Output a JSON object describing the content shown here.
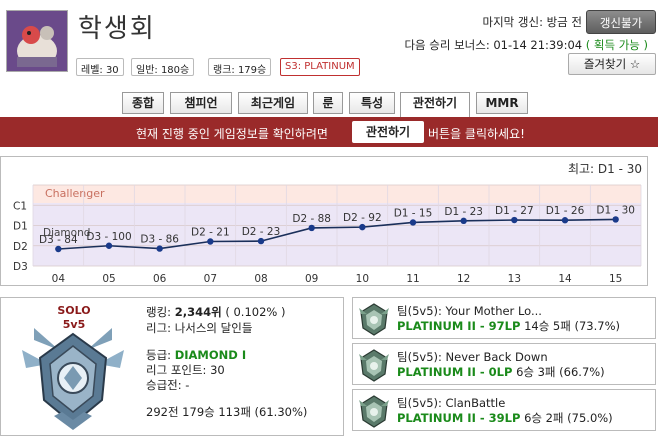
{
  "profile": {
    "name": "학생회",
    "level": "레벨: 30",
    "normal": "일반: 180승",
    "rank": "랭크: 179승",
    "tier": "S3: PLATINUM"
  },
  "update": {
    "last_update_label": "마지막 갱신: 방금 전",
    "button": "갱신불가",
    "next_bonus": "다음 승리 보너스: 01-14 21:39:04",
    "bonus_status": "( 획득 가능 )",
    "favorite": "즐겨찾기 ☆"
  },
  "tabs": [
    "종합",
    "챔피언",
    "최근게임",
    "룬",
    "특성",
    "관전하기",
    "MMR"
  ],
  "spectate_bar": {
    "text_before": "현재 진행 중인 게임정보를 확인하려면",
    "button": "관전하기",
    "text_after": "버튼을 클릭하세요!"
  },
  "chart_data": {
    "type": "line",
    "max_label": "최고: D1 - 30",
    "y_tick_labels": [
      "C1",
      "D1",
      "D2",
      "D3"
    ],
    "band_label": "Challenger",
    "diamond_label": "Diamond",
    "x": [
      "04",
      "05",
      "06",
      "07",
      "08",
      "09",
      "10",
      "11",
      "12",
      "13",
      "14",
      "15"
    ],
    "point_labels": [
      "D3 - 84",
      "D3 - 100",
      "D3 - 86",
      "D2 - 21",
      "D2 - 23",
      "D2 - 88",
      "D2 - 92",
      "D1 - 15",
      "D1 - 23",
      "D1 - 27",
      "D1 - 26",
      "D1 - 30"
    ],
    "values": [
      2.84,
      3.0,
      2.86,
      3.21,
      3.23,
      3.88,
      3.92,
      4.15,
      4.23,
      4.27,
      4.26,
      4.3
    ],
    "ylim": [
      2,
      6
    ],
    "colors": {
      "line": "#1a2f5a",
      "point": "#1a3a8a",
      "challenger_band": "#fde8e2",
      "diamond_band": "#ece6f6"
    }
  },
  "solo": {
    "title1": "SOLO",
    "title2": "5v5",
    "ranking_label": "랭킹:",
    "ranking_value": "2,344위",
    "ranking_pct": "( 0.102% )",
    "league": "리그: 나서스의 달인들",
    "tier_label": "등급:",
    "tier_value": "DIAMOND I",
    "league_points": "리그 포인트: 30",
    "promo": "승급전: -",
    "record": "292전 179승 113패 (61.30%)"
  },
  "teams": [
    {
      "name": "팀(5v5): Your Mother Lo...",
      "tier": "PLATINUM II - 97LP",
      "record": "14승 5패 (73.7%)"
    },
    {
      "name": "팀(5v5): Never Back Down",
      "tier": "PLATINUM II - 0LP",
      "record": "6승 3패 (66.7%)"
    },
    {
      "name": "팀(5v5): ClanBattle",
      "tier": "PLATINUM II - 39LP",
      "record": "6승 2패 (75.0%)"
    }
  ]
}
